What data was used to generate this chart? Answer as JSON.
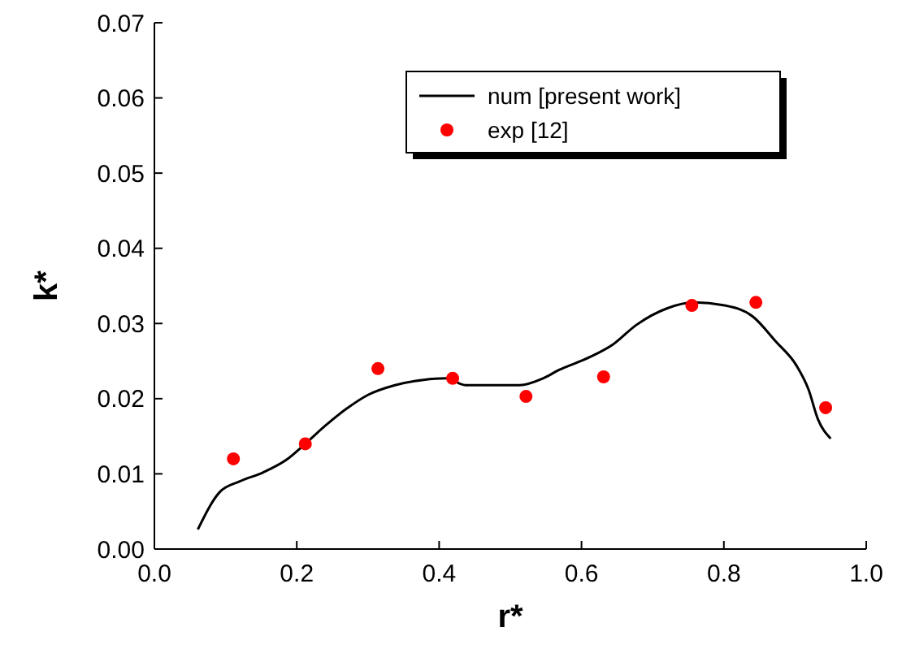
{
  "chart_data": {
    "type": "line",
    "xlabel": "r*",
    "ylabel": "k*",
    "xlim": [
      0,
      1
    ],
    "ylim": [
      0,
      0.07
    ],
    "xticks": [
      {
        "value": 0,
        "label": "0.0"
      },
      {
        "value": 0.2,
        "label": "0.2"
      },
      {
        "value": 0.4,
        "label": "0.4"
      },
      {
        "value": 0.6,
        "label": "0.6"
      },
      {
        "value": 0.8,
        "label": "0.8"
      },
      {
        "value": 1,
        "label": "1.0"
      }
    ],
    "yticks": [
      {
        "value": 0,
        "label": "0.00"
      },
      {
        "value": 0.01,
        "label": "0.01"
      },
      {
        "value": 0.02,
        "label": "0.02"
      },
      {
        "value": 0.03,
        "label": "0.03"
      },
      {
        "value": 0.04,
        "label": "0.04"
      },
      {
        "value": 0.05,
        "label": "0.05"
      },
      {
        "value": 0.06,
        "label": "0.06"
      },
      {
        "value": 0.07,
        "label": "0.07"
      }
    ],
    "legend": "top right",
    "grid": false,
    "series": [
      {
        "name": "num [present work]",
        "color": "#000000",
        "marker": "none",
        "line_style": "solid",
        "x": [
          0.061,
          0.092,
          0.12,
          0.153,
          0.186,
          0.212,
          0.24,
          0.269,
          0.3,
          0.338,
          0.378,
          0.41,
          0.437,
          0.47,
          0.513,
          0.546,
          0.568,
          0.611,
          0.644,
          0.677,
          0.72,
          0.758,
          0.801,
          0.841,
          0.873,
          0.902,
          0.919,
          0.932,
          0.95
        ],
        "values": [
          0.0026,
          0.0076,
          0.009,
          0.0102,
          0.0119,
          0.014,
          0.0164,
          0.0186,
          0.0205,
          0.0218,
          0.0225,
          0.0227,
          0.0218,
          0.0218,
          0.0218,
          0.0227,
          0.0238,
          0.0255,
          0.0272,
          0.0298,
          0.032,
          0.0328,
          0.0324,
          0.0309,
          0.0276,
          0.0244,
          0.0212,
          0.0173,
          0.0147
        ]
      },
      {
        "name": "exp [12]",
        "type": "scatter",
        "color": "#ff0000",
        "marker": "circle",
        "x": [
          0.111,
          0.212,
          0.314,
          0.419,
          0.522,
          0.631,
          0.755,
          0.845,
          0.943
        ],
        "values": [
          0.012,
          0.014,
          0.024,
          0.0227,
          0.0203,
          0.0229,
          0.0324,
          0.0328,
          0.0188
        ]
      }
    ]
  }
}
